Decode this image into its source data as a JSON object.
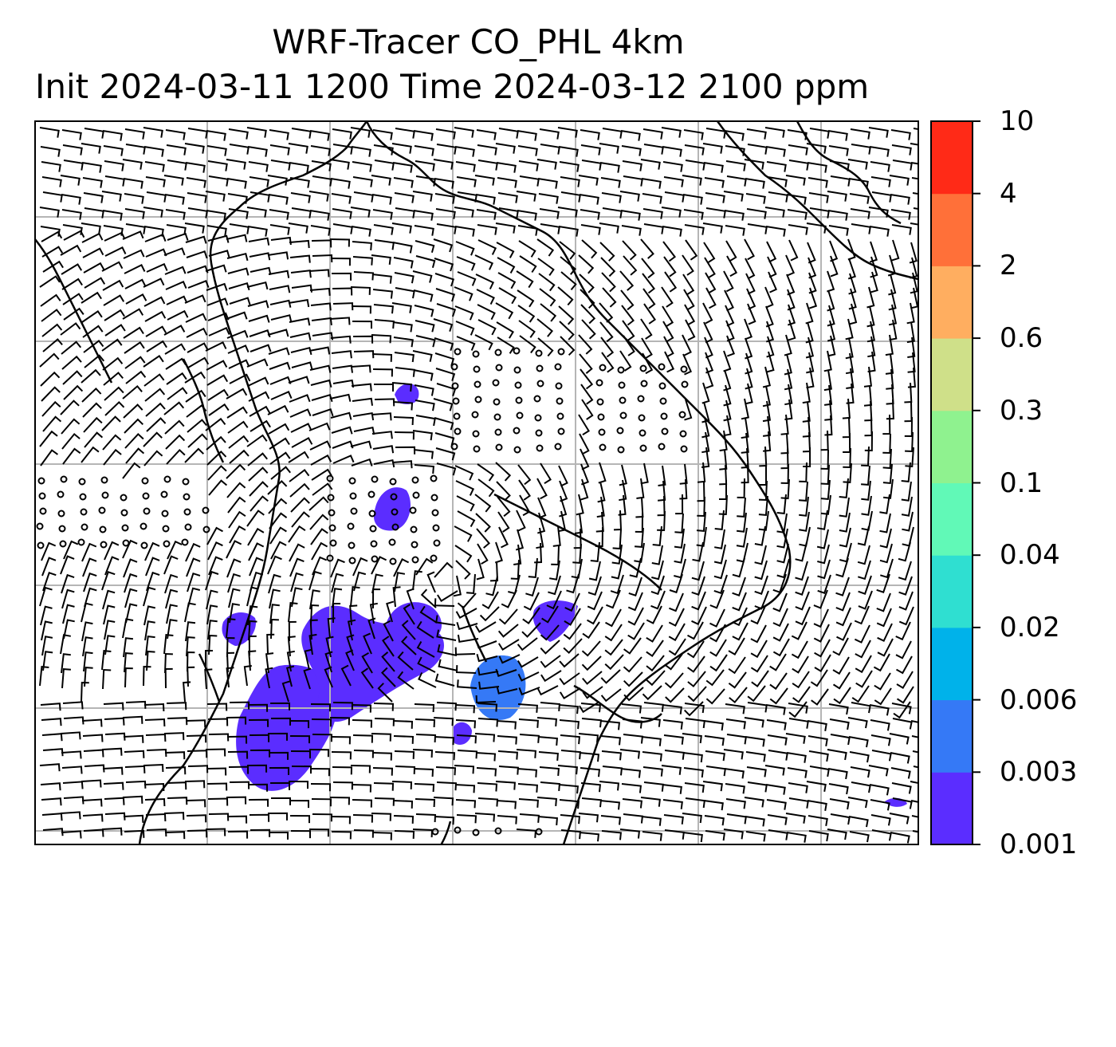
{
  "title": {
    "line1": "WRF-Tracer CO_PHL 4km",
    "line2": "Init 2024-03-11 1200 Time 2024-03-12 2100 ppm"
  },
  "colorbar": {
    "levels": [
      "0.001",
      "0.003",
      "0.006",
      "0.02",
      "0.04",
      "0.1",
      "0.3",
      "0.6",
      "2",
      "4",
      "10"
    ],
    "colors": [
      "#5b2dff",
      "#3579f6",
      "#00b2ea",
      "#2fdfd1",
      "#61f9b7",
      "#8ff28f",
      "#cfe089",
      "#ffae60",
      "#ff7039",
      "#ff2a17"
    ]
  },
  "map": {
    "background": "#ffffff",
    "gridline_color": "#b5b5b5",
    "coastline_color": "#000000",
    "barb_color": "#000000",
    "gridline_count_x": 7,
    "gridline_count_y": 7
  },
  "plumes": [
    {
      "name": "main-plume-west",
      "level": 0
    },
    {
      "name": "main-plume-center",
      "level": 0
    },
    {
      "name": "plume-north-east",
      "level": 0
    },
    {
      "name": "plume-south",
      "level": 1
    },
    {
      "name": "plume-north",
      "level": 0
    },
    {
      "name": "plume-upper",
      "level": 0
    },
    {
      "name": "plume-far-east",
      "level": 0
    },
    {
      "name": "plume-small-south",
      "level": 0
    }
  ]
}
